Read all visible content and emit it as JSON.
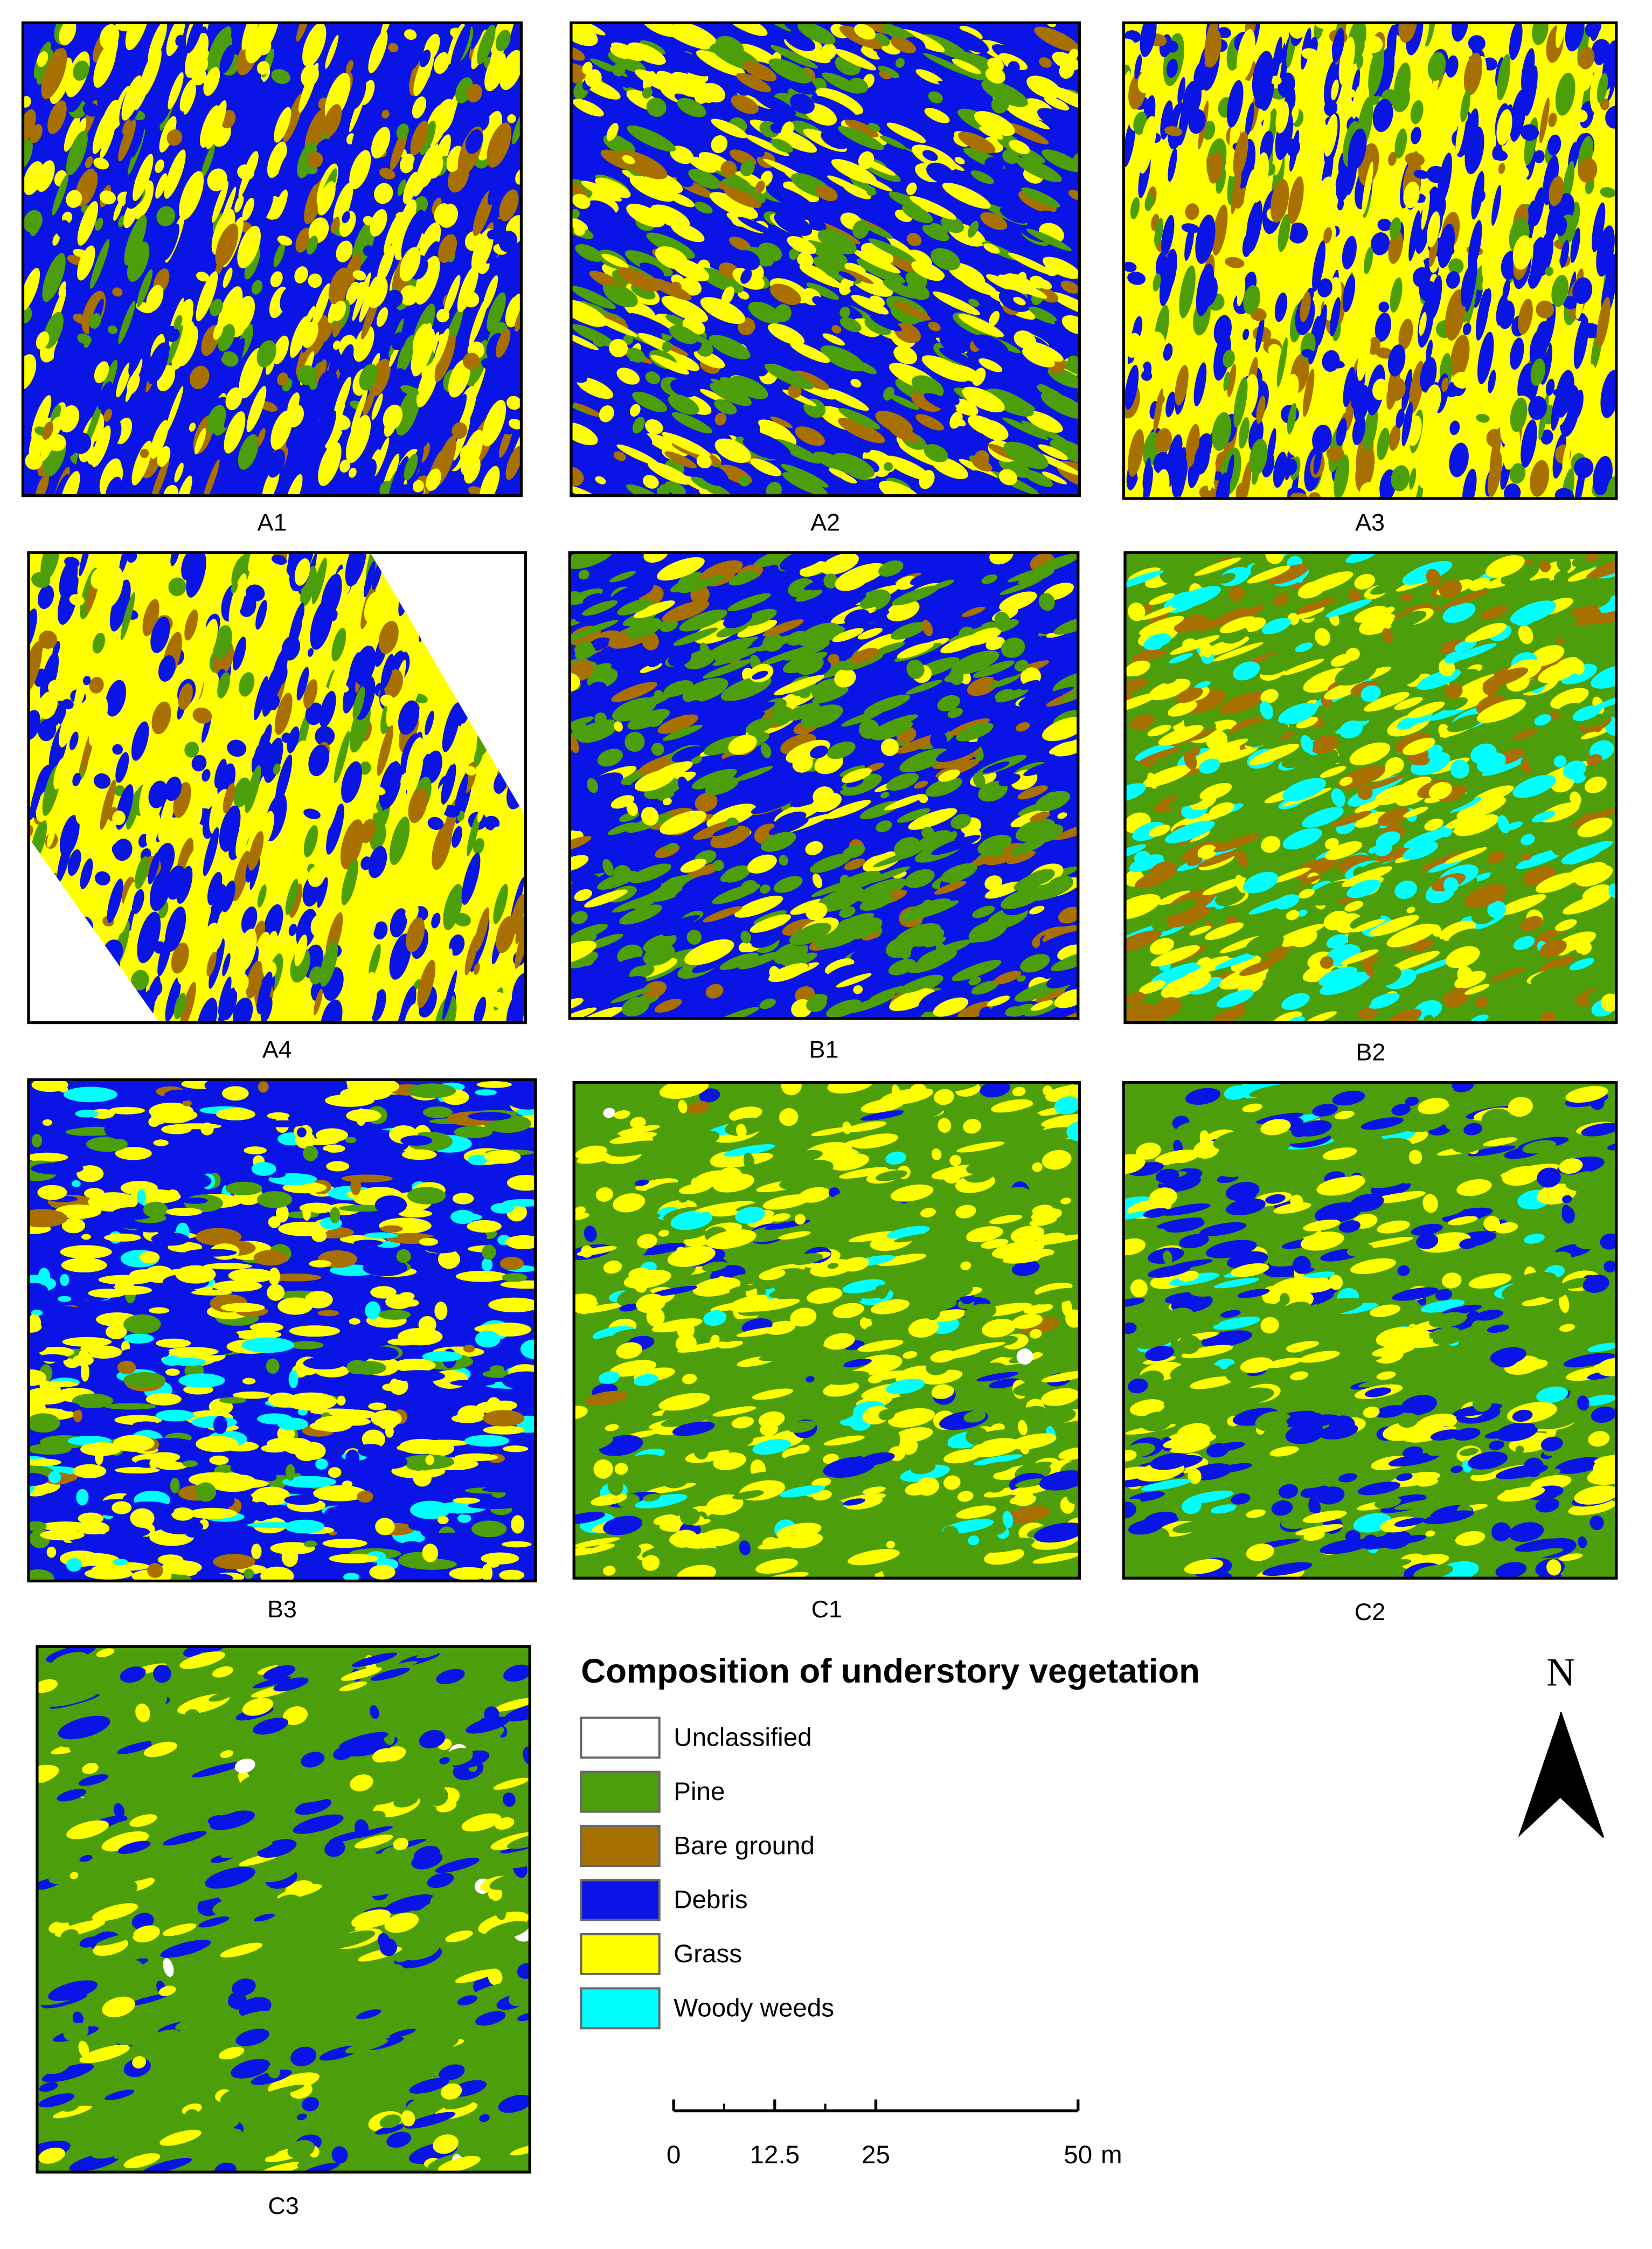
{
  "panels": [
    {
      "label": "A1"
    },
    {
      "label": "A2"
    },
    {
      "label": "A3"
    },
    {
      "label": "A4"
    },
    {
      "label": "B1"
    },
    {
      "label": "B2"
    },
    {
      "label": "B3"
    },
    {
      "label": "C1"
    },
    {
      "label": "C2"
    },
    {
      "label": "C3"
    }
  ],
  "legend": {
    "title": "Composition of understory vegetation",
    "items": [
      {
        "label": "Unclassified",
        "color": "#ffffff"
      },
      {
        "label": "Pine",
        "color": "#4c9e0a"
      },
      {
        "label": "Bare ground",
        "color": "#a87000"
      },
      {
        "label": "Debris",
        "color": "#0a14e6"
      },
      {
        "label": "Grass",
        "color": "#ffff00"
      },
      {
        "label": "Woody weeds",
        "color": "#00ffff"
      }
    ]
  },
  "north_arrow": {
    "label": "N"
  },
  "scale_bar": {
    "ticks": [
      0,
      12.5,
      25,
      50
    ],
    "unit": "m"
  }
}
